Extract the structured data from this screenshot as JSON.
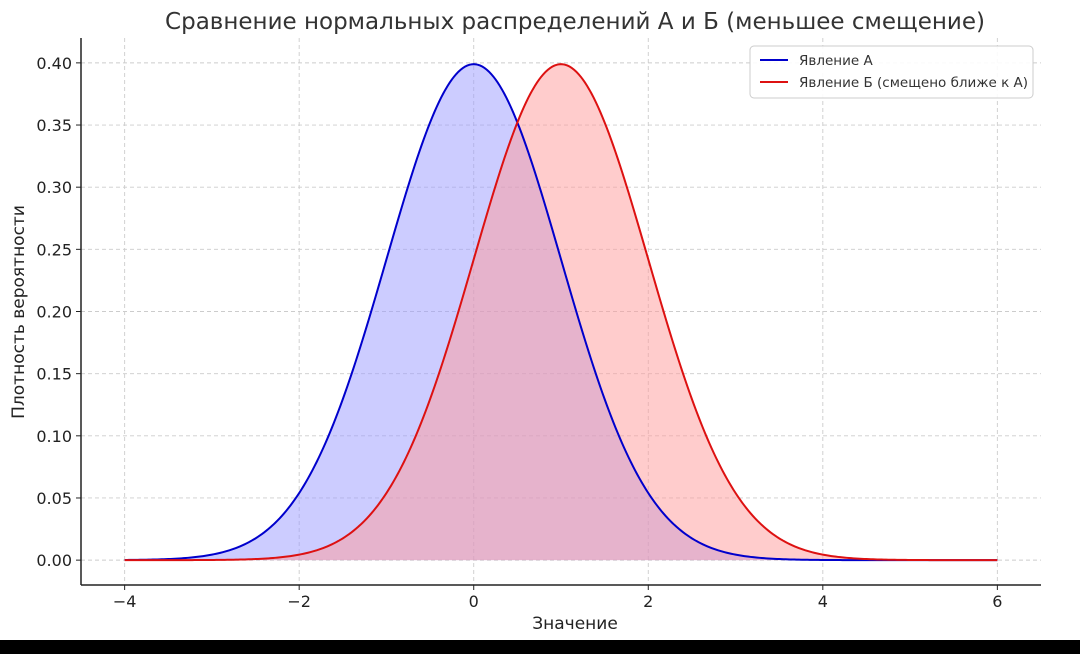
{
  "chart_data": {
    "type": "line",
    "title": "Сравнение нормальных распределений А и Б (меньшее смещение)",
    "xlabel": "Значение",
    "ylabel": "Плотность вероятности",
    "xlim": [
      -4.5,
      6.5
    ],
    "ylim": [
      -0.02,
      0.42
    ],
    "x_range": [
      -4,
      6
    ],
    "x_ticks": [
      -4,
      -2,
      0,
      2,
      4,
      6
    ],
    "x_tick_labels": [
      "−4",
      "−2",
      "0",
      "2",
      "4",
      "6"
    ],
    "y_ticks": [
      0.0,
      0.05,
      0.1,
      0.15,
      0.2,
      0.25,
      0.3,
      0.35,
      0.4
    ],
    "y_tick_labels": [
      "0.00",
      "0.05",
      "0.10",
      "0.15",
      "0.20",
      "0.25",
      "0.30",
      "0.35",
      "0.40"
    ],
    "grid": true,
    "legend_position": "top-right",
    "series": [
      {
        "name": "Явление А",
        "distribution": "normal",
        "mean": 0,
        "std": 1,
        "peak": 0.399,
        "color": "#0000cc",
        "fill_color": "#9999ff",
        "fill_opacity": 0.5
      },
      {
        "name": "Явление Б (смещено ближе к А)",
        "distribution": "normal",
        "mean": 1,
        "std": 1,
        "peak": 0.399,
        "color": "#dd1111",
        "fill_color": "#ff9999",
        "fill_opacity": 0.5
      }
    ]
  }
}
